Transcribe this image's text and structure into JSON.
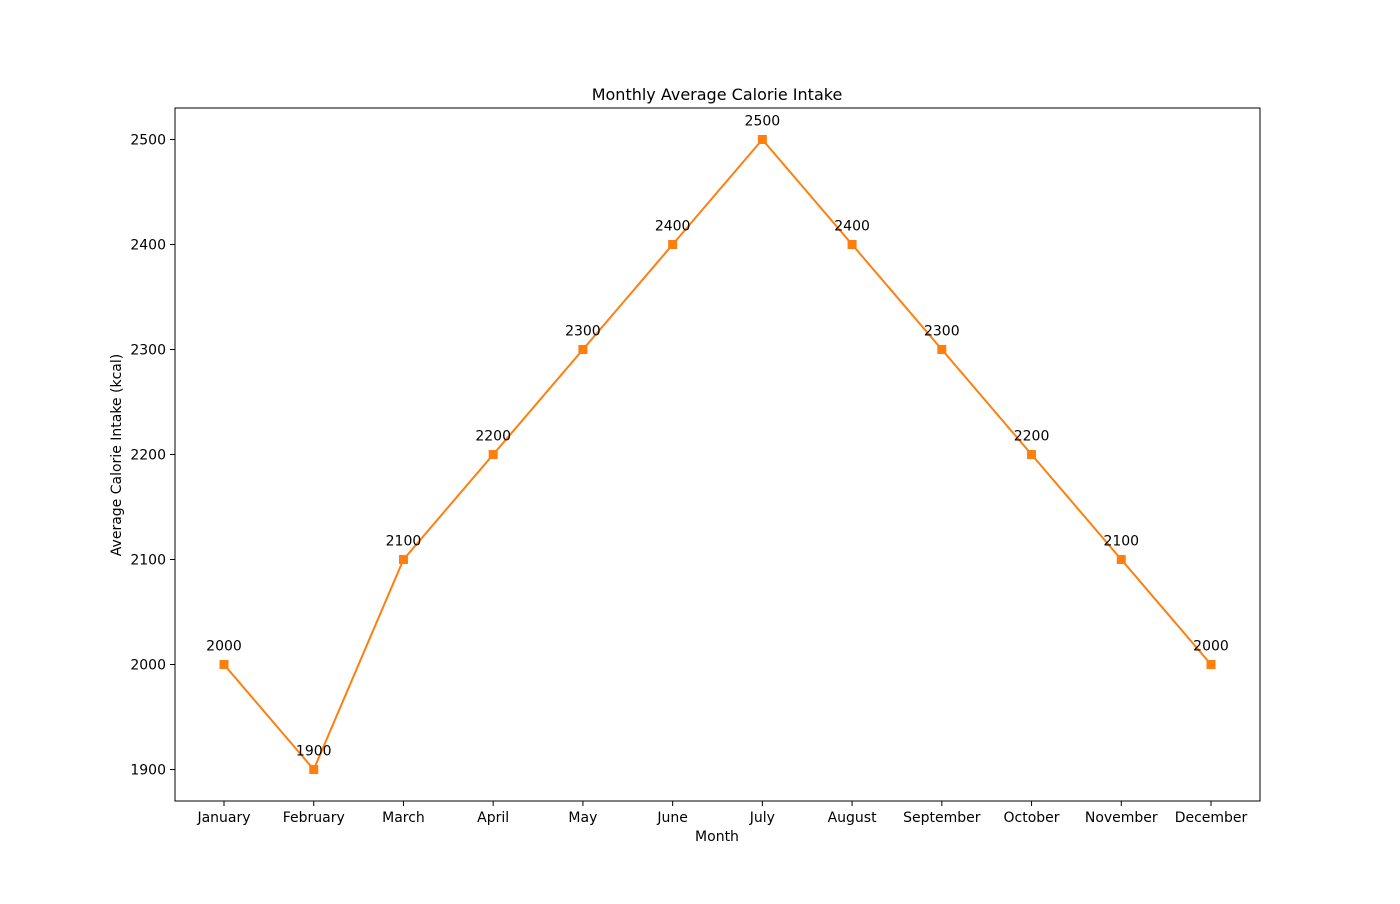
{
  "chart_data": {
    "type": "line",
    "title": "Monthly Average Calorie Intake",
    "xlabel": "Month",
    "ylabel": "Average Calorie Intake (kcal)",
    "categories": [
      "January",
      "February",
      "March",
      "April",
      "May",
      "June",
      "July",
      "August",
      "September",
      "October",
      "November",
      "December"
    ],
    "series": [
      {
        "values": [
          2000,
          1900,
          2100,
          2200,
          2300,
          2400,
          2500,
          2400,
          2300,
          2200,
          2100,
          2000
        ],
        "color": "#ff7f0e",
        "marker": "square"
      }
    ],
    "ylim": [
      1870,
      2530
    ],
    "yticks": [
      1900,
      2000,
      2100,
      2200,
      2300,
      2400,
      2500
    ],
    "data_labels": true,
    "grid": false,
    "legend": "none"
  }
}
